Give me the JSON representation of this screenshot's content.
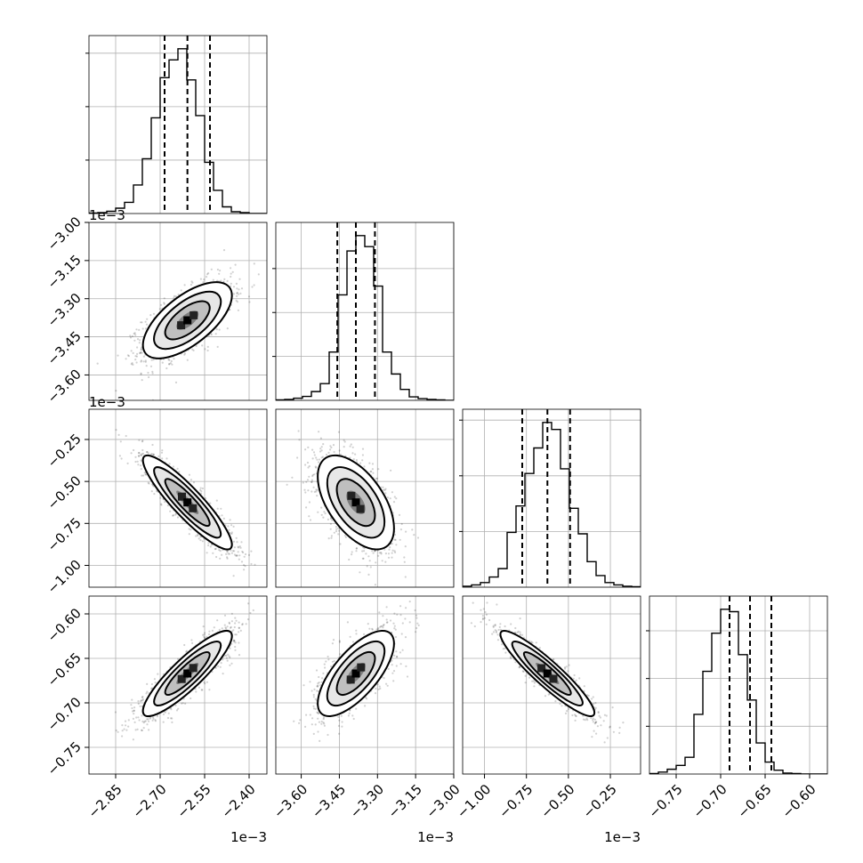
{
  "chart_data": {
    "type": "corner",
    "multipliers": {
      "x_columns": [
        "1e−3",
        "1e−3",
        "1e−3"
      ],
      "y_rows": [
        "1e−3",
        "1e−3"
      ]
    },
    "parameters": [
      {
        "axis_range": [
          -2.94,
          -2.34
        ],
        "ticks": [
          -2.85,
          -2.7,
          -2.55,
          -2.4
        ],
        "tick_labels": [
          "−2.85",
          "−2.70",
          "−2.55",
          "−2.40"
        ],
        "quantiles": [
          -2.685,
          -2.608,
          -2.532
        ],
        "hist": {
          "edges_start": -2.94,
          "bin_width": 0.03,
          "counts": [
            1,
            2,
            5,
            12,
            25,
            64,
            123,
            215,
            305,
            345,
            370,
            300,
            220,
            115,
            52,
            15,
            4,
            2,
            0,
            0
          ]
        },
        "hist_y_ticks": [
          120,
          240,
          360
        ]
      },
      {
        "axis_range": [
          -3.7,
          -3.0
        ],
        "ticks": [
          -3.6,
          -3.45,
          -3.3,
          -3.15,
          -3.0
        ],
        "tick_labels": [
          "−3.60",
          "−3.45",
          "−3.30",
          "−3.15",
          "−3.00"
        ],
        "y_tick_labels": [
          "−3.00",
          "−3.15",
          "−3.30",
          "−3.45",
          "−3.60"
        ],
        "quantiles": [
          -3.458,
          -3.385,
          -3.31
        ],
        "hist": {
          "edges_start": -3.7,
          "bin_width": 0.035,
          "counts": [
            1,
            2,
            5,
            9,
            20,
            38,
            110,
            240,
            340,
            375,
            350,
            260,
            110,
            60,
            25,
            8,
            4,
            2,
            1,
            0
          ]
        },
        "hist_y_ticks": [
          100,
          200,
          300
        ]
      },
      {
        "axis_range": [
          -1.13,
          -0.07
        ],
        "ticks": [
          -1.0,
          -0.75,
          -0.5,
          -0.25
        ],
        "tick_labels": [
          "−1.00",
          "−0.75",
          "−0.50",
          "−0.25"
        ],
        "quantiles": [
          -0.775,
          -0.625,
          -0.49
        ],
        "hist": {
          "edges_start": -1.13,
          "bin_width": 0.053,
          "counts": [
            2,
            5,
            10,
            22,
            40,
            118,
            175,
            245,
            300,
            355,
            340,
            255,
            170,
            115,
            55,
            25,
            10,
            5,
            2,
            1
          ]
        },
        "hist_y_ticks": [
          120,
          240,
          360
        ]
      },
      {
        "axis_range": [
          -0.78,
          -0.58
        ],
        "ticks": [
          -0.75,
          -0.7,
          -0.65,
          -0.6
        ],
        "tick_labels": [
          "−0.75",
          "−0.70",
          "−0.65",
          "−0.60"
        ],
        "quantiles": [
          -0.69,
          -0.667,
          -0.643
        ],
        "hist": {
          "edges_start": -0.78,
          "bin_width": 0.01,
          "counts": [
            1,
            4,
            10,
            18,
            35,
            125,
            215,
            295,
            345,
            340,
            250,
            155,
            65,
            25,
            8,
            2,
            1,
            0,
            0,
            0
          ]
        },
        "hist_y_ticks": [
          100,
          200,
          300
        ]
      }
    ],
    "correlations": {
      "1,0": 0.65,
      "2,0": -0.9,
      "2,1": -0.55,
      "3,0": 0.88,
      "3,1": 0.7,
      "3,2": -0.92
    },
    "means": [
      -2.608,
      -3.385,
      -0.625,
      -0.667
    ],
    "stdevs": [
      0.075,
      0.075,
      0.14,
      0.024
    ],
    "contour_levels_sigma": [
      0.5,
      1.0,
      1.5,
      2.0
    ],
    "grid": true,
    "quantile_line_style": "dashed"
  }
}
